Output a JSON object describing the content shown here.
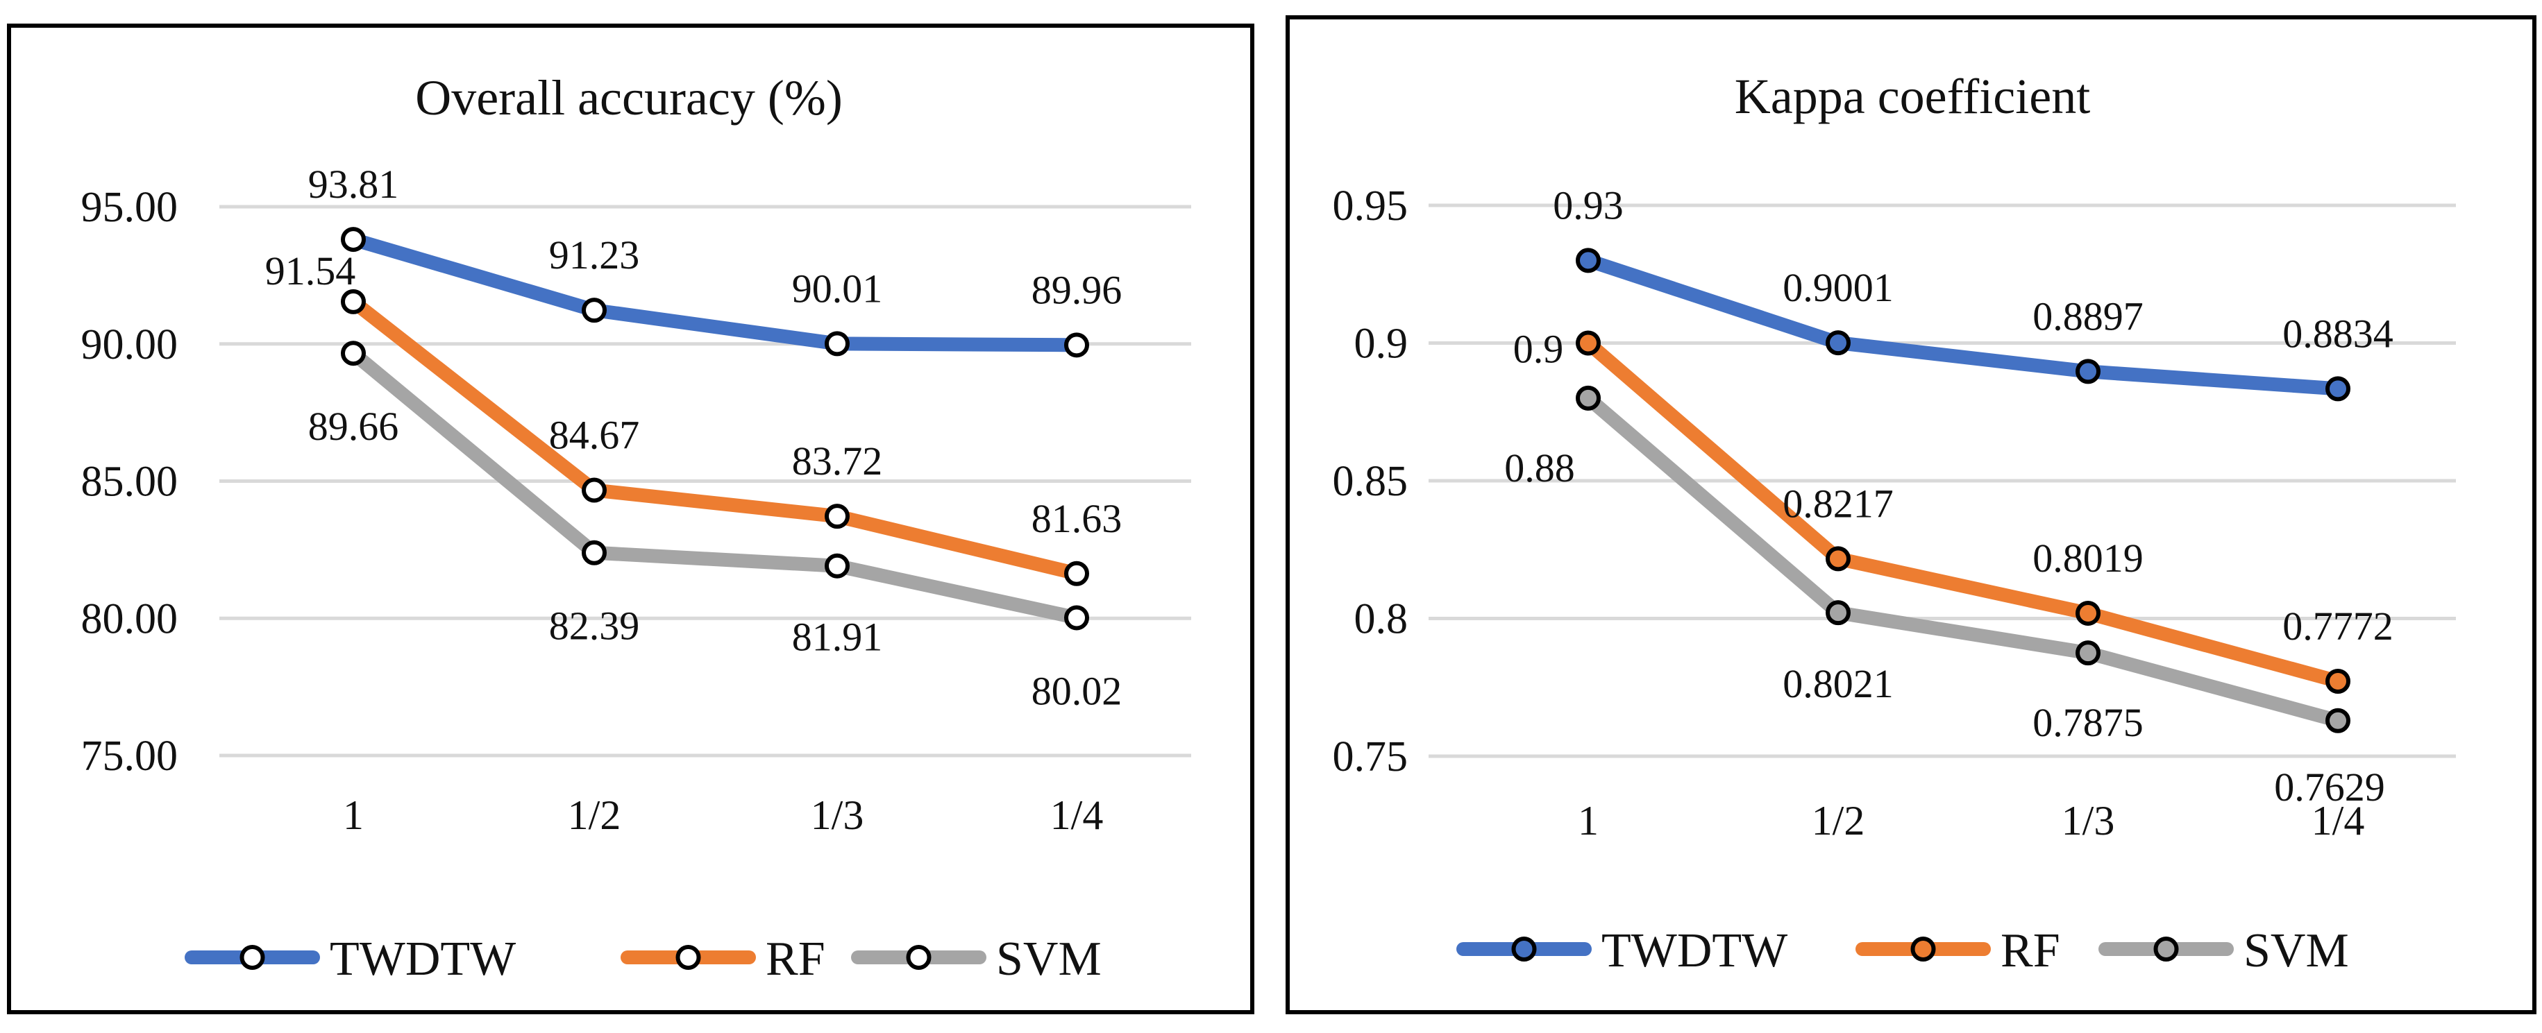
{
  "colors": {
    "TWDTW": "#4472C4",
    "RF": "#ED7D31",
    "SVM": "#A5A5A5",
    "grid": "#D9D9D9",
    "text": "#111111"
  },
  "chart_data": [
    {
      "type": "line",
      "title": "Overall accuracy (%)",
      "categories": [
        "1",
        "1/2",
        "1/3",
        "1/4"
      ],
      "ylim": [
        75,
        95
      ],
      "y_ticks": [
        "75.00",
        "80.00",
        "85.00",
        "90.00",
        "95.00"
      ],
      "grid": true,
      "legend_position": "bottom",
      "marker_fill": "white",
      "series": [
        {
          "name": "TWDTW",
          "values": [
            93.81,
            91.23,
            90.01,
            89.96
          ],
          "labels": [
            "93.81",
            "91.23",
            "90.01",
            "89.96"
          ]
        },
        {
          "name": "RF",
          "values": [
            91.54,
            84.67,
            83.72,
            81.63
          ],
          "labels": [
            "91.54",
            "84.67",
            "83.72",
            "81.63"
          ]
        },
        {
          "name": "SVM",
          "values": [
            89.66,
            82.39,
            81.91,
            80.02
          ],
          "labels": [
            "89.66",
            "82.39",
            "81.91",
            "80.02"
          ]
        }
      ]
    },
    {
      "type": "line",
      "title": "Kappa coefficient",
      "categories": [
        "1",
        "1/2",
        "1/3",
        "1/4"
      ],
      "ylim": [
        0.75,
        0.95
      ],
      "y_ticks": [
        "0.75",
        "0.8",
        "0.85",
        "0.9",
        "0.95"
      ],
      "grid": true,
      "legend_position": "bottom",
      "marker_fill": "series",
      "series": [
        {
          "name": "TWDTW",
          "values": [
            0.93,
            0.9001,
            0.8897,
            0.8834
          ],
          "labels": [
            "0.93",
            "0.9001",
            "0.8897",
            "0.8834"
          ]
        },
        {
          "name": "RF",
          "values": [
            0.9,
            0.8217,
            0.8019,
            0.7772
          ],
          "labels": [
            "0.9",
            "0.8217",
            "0.8019",
            "0.7772"
          ]
        },
        {
          "name": "SVM",
          "values": [
            0.88,
            0.8021,
            0.7875,
            0.7629
          ],
          "labels": [
            "0.88",
            "0.8021",
            "0.7875",
            "0.7629"
          ]
        }
      ]
    }
  ]
}
